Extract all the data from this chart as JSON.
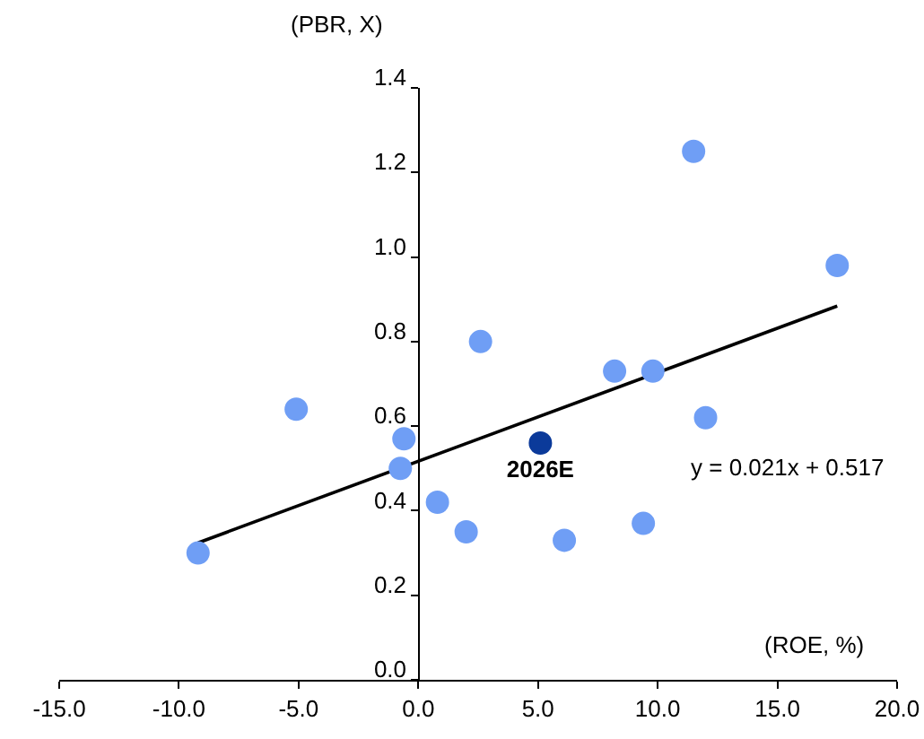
{
  "chart_data": {
    "type": "scatter",
    "xlabel": "(ROE, %)",
    "ylabel": "(PBR, X)",
    "xlim": [
      -15,
      20
    ],
    "ylim": [
      0,
      1.4
    ],
    "xticks": [
      {
        "value": -15,
        "label": "-15.0"
      },
      {
        "value": -10,
        "label": "-10.0"
      },
      {
        "value": -5,
        "label": "-5.0"
      },
      {
        "value": 0,
        "label": "0.0"
      },
      {
        "value": 5,
        "label": "5.0"
      },
      {
        "value": 10,
        "label": "10.0"
      },
      {
        "value": 15,
        "label": "15.0"
      },
      {
        "value": 20,
        "label": "20.0"
      }
    ],
    "yticks": [
      {
        "value": 0,
        "label": "0.0"
      },
      {
        "value": 0.2,
        "label": "0.2"
      },
      {
        "value": 0.4,
        "label": "0.4"
      },
      {
        "value": 0.6,
        "label": "0.6"
      },
      {
        "value": 0.8,
        "label": "0.8"
      },
      {
        "value": 1,
        "label": "1.0"
      },
      {
        "value": 1.2,
        "label": "1.2"
      },
      {
        "value": 1.4,
        "label": "1.4"
      }
    ],
    "grid": false,
    "legend": false,
    "marker": "circle",
    "series": [
      {
        "type": "line",
        "marker": "none",
        "color": "#000000",
        "x": [
          -9.2,
          17.5
        ],
        "values": [
          0.324,
          0.884
        ]
      },
      {
        "color": "#6f9ef5",
        "x": [
          -9.2,
          -5.1,
          -0.6,
          -0.75,
          0.8,
          2.0,
          2.6,
          6.1,
          8.2,
          9.8,
          9.4,
          11.5,
          12.0,
          17.5
        ],
        "values": [
          0.3,
          0.64,
          0.57,
          0.5,
          0.42,
          0.35,
          0.8,
          0.33,
          0.73,
          0.73,
          0.37,
          1.25,
          0.62,
          0.98
        ]
      },
      {
        "name": "2026E",
        "color": "#0b3a9a",
        "x": [
          5.1
        ],
        "values": [
          0.56
        ]
      }
    ],
    "annotations": [
      "y = 0.021x + 0.517"
    ]
  }
}
